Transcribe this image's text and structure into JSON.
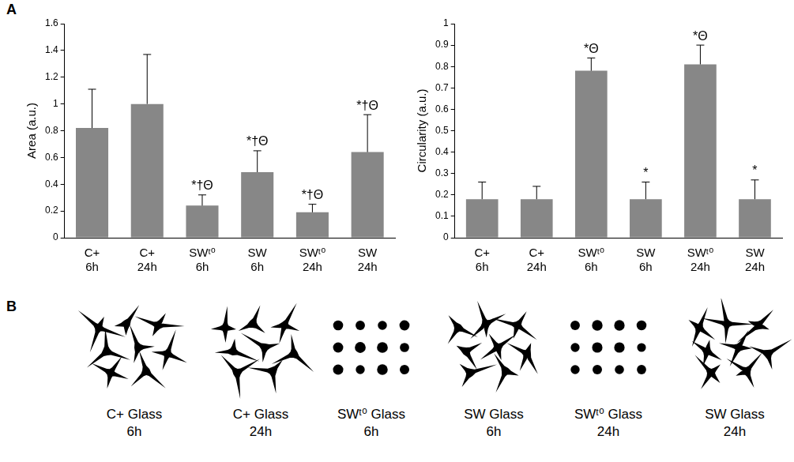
{
  "panel_letters": [
    "A",
    "B"
  ],
  "chart_data": [
    {
      "type": "bar",
      "y_label": "Area (a.u.)",
      "categories": [
        [
          "C+",
          "6h"
        ],
        [
          "C+",
          "24h"
        ],
        [
          "SWᵗ⁰",
          "6h"
        ],
        [
          "SW",
          "6h"
        ],
        [
          "SWᵗ⁰",
          "24h"
        ],
        [
          "SW",
          "24h"
        ]
      ],
      "values": [
        0.82,
        1.0,
        0.24,
        0.49,
        0.19,
        0.64
      ],
      "errors": [
        0.29,
        0.37,
        0.08,
        0.16,
        0.06,
        0.28
      ],
      "annotations": [
        null,
        null,
        "*†Θ",
        "*†Θ",
        "*†Θ",
        "*†Θ"
      ],
      "color": "#878787",
      "ylim": [
        0,
        1.6
      ],
      "yticks": [
        0,
        0.2,
        0.4,
        0.6,
        0.8,
        1,
        1.2,
        1.4,
        1.6
      ],
      "grid": false
    },
    {
      "type": "bar",
      "y_label": "Circularity (a.u.)",
      "categories": [
        [
          "C+",
          "6h"
        ],
        [
          "C+",
          "24h"
        ],
        [
          "SWᵗ⁰",
          "6h"
        ],
        [
          "SW",
          "6h"
        ],
        [
          "SWᵗ⁰",
          "24h"
        ],
        [
          "SW",
          "24h"
        ]
      ],
      "values": [
        0.18,
        0.18,
        0.78,
        0.18,
        0.81,
        0.18
      ],
      "errors": [
        0.08,
        0.06,
        0.06,
        0.08,
        0.09,
        0.09
      ],
      "annotations": [
        null,
        null,
        "*Θ",
        "*",
        "*Θ",
        "*"
      ],
      "color": "#878787",
      "ylim": [
        0,
        1
      ],
      "yticks": [
        0,
        0.1,
        0.2,
        0.3,
        0.4,
        0.5,
        0.6,
        0.7,
        0.8,
        0.9,
        1
      ],
      "grid": false
    }
  ],
  "panel_b": {
    "cells": [
      {
        "label": [
          "C+ Glass",
          "6h"
        ],
        "shape": "spread"
      },
      {
        "label": [
          "C+ Glass",
          "24h"
        ],
        "shape": "spread"
      },
      {
        "label": [
          "SWᵗ⁰ Glass",
          "6h"
        ],
        "shape": "round"
      },
      {
        "label": [
          "SW Glass",
          "6h"
        ],
        "shape": "spread"
      },
      {
        "label": [
          "SWᵗ⁰ Glass",
          "24h"
        ],
        "shape": "round"
      },
      {
        "label": [
          "SW Glass",
          "24h"
        ],
        "shape": "spread"
      }
    ]
  }
}
